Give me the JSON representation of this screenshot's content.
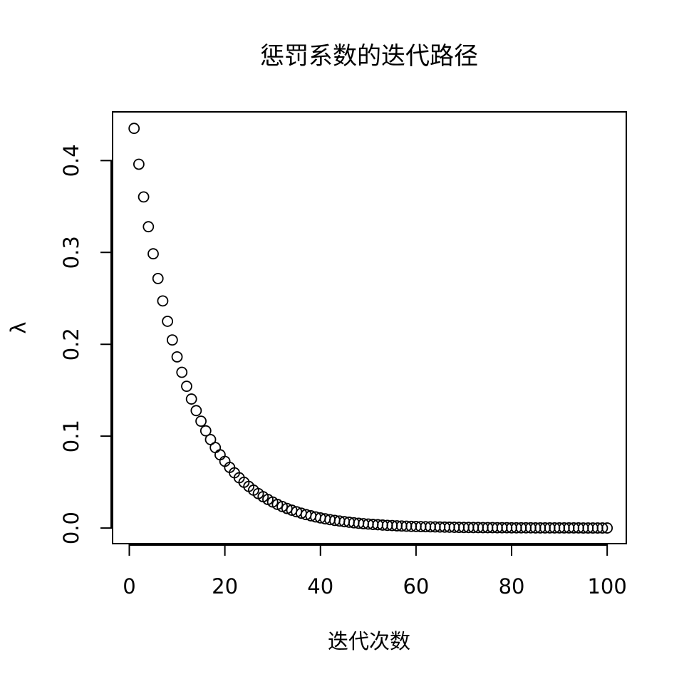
{
  "chart_data": {
    "type": "scatter",
    "title": "惩罚系数的迭代路径",
    "xlabel": "迭代次数",
    "ylabel": "λ",
    "xlim": [
      -3.5,
      104
    ],
    "ylim": [
      -0.017,
      0.453
    ],
    "x_ticks": [
      0,
      20,
      40,
      60,
      80,
      100
    ],
    "y_ticks": [
      0.0,
      0.1,
      0.2,
      0.3,
      0.4
    ],
    "x_tick_labels": [
      "0",
      "20",
      "40",
      "60",
      "80",
      "100"
    ],
    "y_tick_labels": [
      "0.0",
      "0.1",
      "0.2",
      "0.3",
      "0.4"
    ],
    "grid": false,
    "marker": "open-circle",
    "series": [
      {
        "x": [
          1,
          2,
          3,
          4,
          5,
          6,
          7,
          8,
          9,
          10,
          11,
          12,
          13,
          14,
          15,
          16,
          17,
          18,
          19,
          20,
          21,
          22,
          23,
          24,
          25,
          26,
          27,
          28,
          29,
          30,
          31,
          32,
          33,
          34,
          35,
          36,
          37,
          38,
          39,
          40,
          41,
          42,
          43,
          44,
          45,
          46,
          47,
          48,
          49,
          50,
          51,
          52,
          53,
          54,
          55,
          56,
          57,
          58,
          59,
          60,
          61,
          62,
          63,
          64,
          65,
          66,
          67,
          68,
          69,
          70,
          71,
          72,
          73,
          74,
          75,
          76,
          77,
          78,
          79,
          80,
          81,
          82,
          83,
          84,
          85,
          86,
          87,
          88,
          89,
          90,
          91,
          92,
          93,
          94,
          95,
          96,
          97,
          98,
          99,
          100
        ],
        "y": [
          0.435,
          0.396,
          0.3604,
          0.328,
          0.2985,
          0.2716,
          0.2472,
          0.225,
          0.2047,
          0.1863,
          0.1695,
          0.1543,
          0.1404,
          0.1278,
          0.1163,
          0.1058,
          0.0963,
          0.0876,
          0.0797,
          0.0726,
          0.066,
          0.0601,
          0.0547,
          0.0498,
          0.0453,
          0.0412,
          0.0375,
          0.0341,
          0.0311,
          0.0283,
          0.0257,
          0.0234,
          0.0213,
          0.0194,
          0.0177,
          0.0161,
          0.0146,
          0.0133,
          0.0121,
          0.011,
          0.01,
          0.0091,
          0.0083,
          0.0076,
          0.0069,
          0.0063,
          0.0057,
          0.0052,
          0.0047,
          0.0043,
          0.0039,
          0.0036,
          0.0032,
          0.0029,
          0.0027,
          0.0024,
          0.0022,
          0.002,
          0.0018,
          0.0017,
          0.0015,
          0.0014,
          0.0013,
          0.0012,
          0.0011,
          0.001,
          0.0009,
          0.0008,
          0.0007,
          0.0006,
          0.0006,
          0.0005,
          0.0005,
          0.0004,
          0.0004,
          0.0004,
          0.0003,
          0.0003,
          0.0003,
          0.0002,
          0.0002,
          0.0002,
          0.0002,
          0.0002,
          0.0001,
          0.0001,
          0.0001,
          0.0001,
          0.0001,
          0.0001,
          0.0001,
          0.0001,
          0.0001,
          0.0001,
          0.0,
          0.0,
          0.0,
          0.0,
          0.0,
          0.0
        ]
      }
    ]
  }
}
